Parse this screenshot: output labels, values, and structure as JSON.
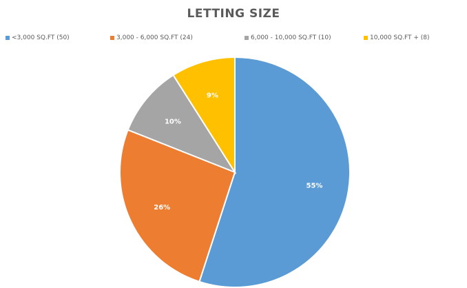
{
  "chart_data": {
    "type": "pie",
    "title": "LETTING SIZE",
    "categories": [
      "<3,000 SQ.FT (50)",
      "3,000 - 6,000 SQ.FT  (24)",
      "6,000 - 10,000 SQ.FT (10)",
      "10,000 SQ.FT + (8)"
    ],
    "values": [
      55,
      26,
      10,
      9
    ],
    "counts": [
      50,
      24,
      10,
      8
    ],
    "data_labels": [
      "55%",
      "26%",
      "10%",
      "9%"
    ],
    "colors": [
      "#5b9bd5",
      "#ed7d31",
      "#a5a5a5",
      "#ffc000"
    ],
    "legend_position": "top"
  }
}
